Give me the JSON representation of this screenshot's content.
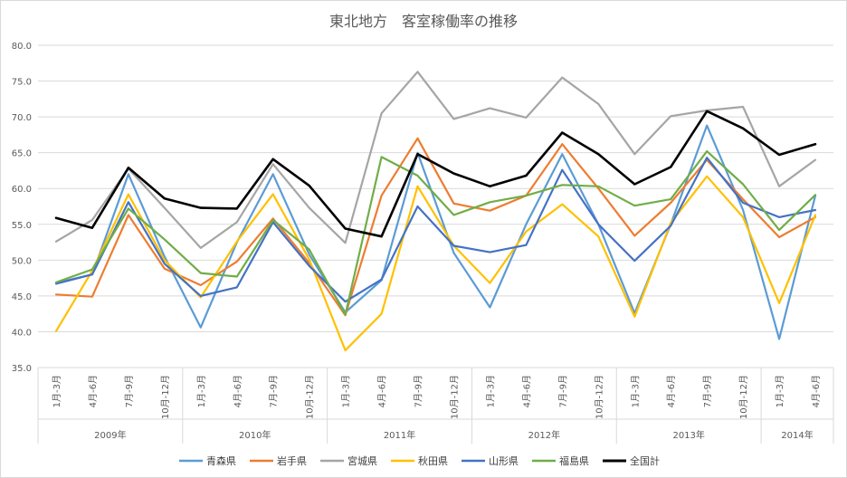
{
  "chart_data": {
    "type": "line",
    "title": "東北地方　客室稼働率の推移",
    "ylim": [
      35.0,
      80.0
    ],
    "yticks": [
      "35.0",
      "40.0",
      "45.0",
      "50.0",
      "55.0",
      "60.0",
      "65.0",
      "70.0",
      "75.0",
      "80.0"
    ],
    "categories": [
      "1月-3月",
      "4月-6月",
      "7月-9月",
      "10月-12月",
      "1月-3月",
      "4月-6月",
      "7月-9月",
      "10月-12月",
      "1月-3月",
      "4月-6月",
      "7月-9月",
      "10月-12月",
      "1月-3月",
      "4月-6月",
      "7月-9月",
      "10月-12月",
      "1月-3月",
      "4月-6月",
      "7月-9月",
      "10月-12月",
      "1月-3月",
      "4月-6月"
    ],
    "years": [
      {
        "label": "2009年",
        "count": 4
      },
      {
        "label": "2010年",
        "count": 4
      },
      {
        "label": "2011年",
        "count": 4
      },
      {
        "label": "2012年",
        "count": 4
      },
      {
        "label": "2013年",
        "count": 4
      },
      {
        "label": "2014年",
        "count": 2
      }
    ],
    "series": [
      {
        "name": "青森県",
        "color": "#5b9bd5",
        "width": 2.2,
        "values": [
          46.8,
          48.0,
          62.0,
          50.5,
          40.6,
          52.5,
          62.0,
          50.8,
          42.7,
          47.2,
          65.0,
          51.0,
          43.4,
          55.0,
          64.8,
          55.0,
          42.6,
          55.0,
          68.8,
          57.0,
          39.0,
          59.0
        ]
      },
      {
        "name": "岩手県",
        "color": "#ed7d31",
        "width": 2.2,
        "values": [
          45.2,
          44.9,
          56.3,
          48.8,
          46.5,
          49.8,
          55.8,
          49.6,
          42.3,
          59.0,
          67.0,
          57.9,
          56.9,
          59.0,
          66.2,
          60.0,
          53.4,
          58.0,
          64.0,
          58.5,
          53.2,
          56.0
        ]
      },
      {
        "name": "宮城県",
        "color": "#a5a5a5",
        "width": 2.2,
        "values": [
          52.6,
          55.6,
          62.8,
          57.3,
          51.7,
          55.3,
          63.4,
          57.3,
          52.4,
          70.5,
          76.3,
          69.7,
          71.2,
          69.9,
          75.5,
          71.8,
          64.8,
          70.1,
          70.9,
          71.4,
          60.3,
          64.0
        ]
      },
      {
        "name": "秋田県",
        "color": "#ffc000",
        "width": 2.2,
        "values": [
          40.1,
          48.5,
          59.2,
          50.0,
          44.8,
          52.6,
          59.2,
          50.1,
          37.4,
          42.5,
          60.3,
          52.0,
          46.8,
          54.0,
          57.8,
          53.3,
          42.1,
          55.2,
          61.7,
          56.0,
          44.0,
          56.3
        ]
      },
      {
        "name": "山形県",
        "color": "#4472c4",
        "width": 2.2,
        "values": [
          46.7,
          48.0,
          58.1,
          49.5,
          45.0,
          46.2,
          55.3,
          49.2,
          44.2,
          47.3,
          57.5,
          52.0,
          51.1,
          52.1,
          62.6,
          55.0,
          49.9,
          54.8,
          64.3,
          58.0,
          56.0,
          57.0
        ]
      },
      {
        "name": "福島県",
        "color": "#70ad47",
        "width": 2.2,
        "values": [
          46.9,
          48.7,
          57.2,
          52.9,
          48.2,
          47.7,
          55.6,
          51.5,
          42.4,
          64.4,
          61.8,
          56.3,
          58.1,
          59.0,
          60.5,
          60.3,
          57.6,
          58.5,
          65.2,
          60.6,
          54.2,
          59.1
        ]
      },
      {
        "name": "全国計",
        "color": "#000000",
        "width": 2.6,
        "values": [
          55.9,
          54.5,
          62.9,
          58.6,
          57.3,
          57.2,
          64.1,
          60.4,
          54.4,
          53.3,
          64.8,
          62.1,
          60.3,
          61.8,
          67.8,
          64.8,
          60.6,
          63.0,
          70.8,
          68.4,
          64.7,
          66.2
        ]
      }
    ]
  }
}
